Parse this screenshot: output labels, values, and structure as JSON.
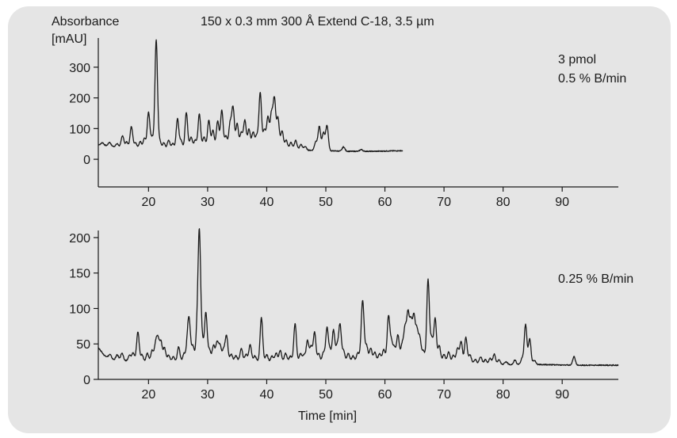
{
  "chart_data": [
    {
      "type": "line",
      "title": "150 x 0.3 mm 300 Å Extend C-18, 3.5 µm",
      "ylabel_line1": "Absorbance",
      "ylabel_line2": "[mAU]",
      "xlabel": "",
      "annotations": [
        "3 pmol",
        "0.5 % B/min"
      ],
      "xlim": [
        11.5,
        99.5
      ],
      "ylim": [
        -90,
        395
      ],
      "x_ticks": [
        20,
        30,
        40,
        50,
        60,
        70,
        80,
        90
      ],
      "y_ticks": [
        0,
        100,
        200,
        300
      ],
      "baseline": [
        [
          11.5,
          48
        ],
        [
          13,
          44
        ],
        [
          15,
          40
        ],
        [
          18,
          36
        ],
        [
          22,
          32
        ],
        [
          26,
          34
        ],
        [
          30,
          36
        ],
        [
          34,
          38
        ],
        [
          38,
          40
        ],
        [
          42,
          36
        ],
        [
          46,
          30
        ],
        [
          50,
          28
        ],
        [
          54,
          26
        ],
        [
          58,
          26
        ],
        [
          63,
          28
        ]
      ],
      "peaks": [
        [
          12.2,
          8
        ],
        [
          13.4,
          12
        ],
        [
          14.7,
          10
        ],
        [
          15.6,
          38
        ],
        [
          16.3,
          18
        ],
        [
          17.1,
          70
        ],
        [
          17.8,
          18
        ],
        [
          18.6,
          22
        ],
        [
          19.3,
          34
        ],
        [
          20.0,
          118
        ],
        [
          20.6,
          38
        ],
        [
          21.3,
          355
        ],
        [
          21.9,
          28
        ],
        [
          22.6,
          22
        ],
        [
          23.4,
          30
        ],
        [
          24.1,
          18
        ],
        [
          24.9,
          98
        ],
        [
          25.5,
          28
        ],
        [
          26.4,
          118
        ],
        [
          27.2,
          38
        ],
        [
          27.9,
          28
        ],
        [
          28.6,
          112
        ],
        [
          29.4,
          38
        ],
        [
          30.2,
          92
        ],
        [
          30.9,
          58
        ],
        [
          31.7,
          88
        ],
        [
          32.4,
          122
        ],
        [
          33.1,
          38
        ],
        [
          33.8,
          78
        ],
        [
          34.3,
          130
        ],
        [
          35.0,
          78
        ],
        [
          35.7,
          48
        ],
        [
          36.3,
          88
        ],
        [
          37.0,
          58
        ],
        [
          37.7,
          48
        ],
        [
          38.3,
          38
        ],
        [
          38.9,
          178
        ],
        [
          39.6,
          58
        ],
        [
          40.2,
          98
        ],
        [
          40.8,
          108
        ],
        [
          41.3,
          158
        ],
        [
          41.9,
          98
        ],
        [
          42.6,
          58
        ],
        [
          43.3,
          28
        ],
        [
          44.1,
          22
        ],
        [
          44.9,
          30
        ],
        [
          45.8,
          18
        ],
        [
          46.5,
          12
        ],
        [
          48.3,
          28
        ],
        [
          48.9,
          78
        ],
        [
          49.6,
          58
        ],
        [
          50.2,
          82
        ],
        [
          53.0,
          14
        ],
        [
          56.0,
          6
        ]
      ]
    },
    {
      "type": "line",
      "title": "",
      "xlabel": "Time [min]",
      "annotations": [
        "0.25 % B/min"
      ],
      "xlim": [
        11.5,
        99.5
      ],
      "ylim": [
        0,
        210
      ],
      "x_ticks": [
        20,
        30,
        40,
        50,
        60,
        70,
        80,
        90
      ],
      "y_ticks": [
        0,
        50,
        100,
        150,
        200
      ],
      "baseline": [
        [
          11.5,
          45
        ],
        [
          12.5,
          34
        ],
        [
          14,
          28
        ],
        [
          18,
          25
        ],
        [
          25,
          24
        ],
        [
          30,
          26
        ],
        [
          40,
          25
        ],
        [
          50,
          24
        ],
        [
          58,
          26
        ],
        [
          64,
          27
        ],
        [
          68,
          26
        ],
        [
          72,
          24
        ],
        [
          76,
          22
        ],
        [
          80,
          21
        ],
        [
          86,
          21
        ],
        [
          92,
          20
        ],
        [
          99.5,
          20
        ]
      ],
      "peaks": [
        [
          13.5,
          5
        ],
        [
          14.7,
          7
        ],
        [
          15.5,
          10
        ],
        [
          16.8,
          8
        ],
        [
          17.4,
          12
        ],
        [
          18.2,
          42
        ],
        [
          18.9,
          10
        ],
        [
          19.8,
          12
        ],
        [
          20.6,
          16
        ],
        [
          21.2,
          25
        ],
        [
          21.6,
          30
        ],
        [
          22.1,
          28
        ],
        [
          22.7,
          20
        ],
        [
          23.4,
          10
        ],
        [
          24.2,
          8
        ],
        [
          25.1,
          22
        ],
        [
          26.0,
          12
        ],
        [
          26.6,
          28
        ],
        [
          26.9,
          50
        ],
        [
          27.5,
          22
        ],
        [
          28.2,
          38
        ],
        [
          28.6,
          178
        ],
        [
          29.1,
          28
        ],
        [
          29.7,
          68
        ],
        [
          30.3,
          16
        ],
        [
          31.0,
          22
        ],
        [
          31.6,
          26
        ],
        [
          32.1,
          22
        ],
        [
          32.7,
          16
        ],
        [
          33.2,
          36
        ],
        [
          34.0,
          10
        ],
        [
          34.8,
          8
        ],
        [
          35.7,
          18
        ],
        [
          36.5,
          10
        ],
        [
          37.2,
          24
        ],
        [
          38.0,
          8
        ],
        [
          39.1,
          62
        ],
        [
          40.0,
          10
        ],
        [
          40.9,
          8
        ],
        [
          41.6,
          12
        ],
        [
          42.3,
          16
        ],
        [
          43.2,
          12
        ],
        [
          44.0,
          8
        ],
        [
          44.8,
          54
        ],
        [
          45.7,
          12
        ],
        [
          46.3,
          10
        ],
        [
          46.9,
          30
        ],
        [
          47.5,
          22
        ],
        [
          48.1,
          42
        ],
        [
          48.8,
          12
        ],
        [
          49.6,
          14
        ],
        [
          50.2,
          48
        ],
        [
          50.7,
          16
        ],
        [
          51.3,
          45
        ],
        [
          51.9,
          22
        ],
        [
          52.4,
          52
        ],
        [
          53.0,
          16
        ],
        [
          53.8,
          12
        ],
        [
          54.6,
          8
        ],
        [
          55.4,
          12
        ],
        [
          56.1,
          36
        ],
        [
          56.3,
          58
        ],
        [
          56.9,
          22
        ],
        [
          57.6,
          18
        ],
        [
          58.3,
          12
        ],
        [
          59.1,
          10
        ],
        [
          59.8,
          16
        ],
        [
          60.6,
          62
        ],
        [
          61.1,
          26
        ],
        [
          61.6,
          18
        ],
        [
          62.2,
          36
        ],
        [
          62.9,
          22
        ],
        [
          63.4,
          44
        ],
        [
          63.9,
          64
        ],
        [
          64.4,
          52
        ],
        [
          64.9,
          60
        ],
        [
          65.4,
          42
        ],
        [
          65.9,
          32
        ],
        [
          66.5,
          14
        ],
        [
          67.3,
          114
        ],
        [
          67.9,
          32
        ],
        [
          68.5,
          60
        ],
        [
          69.2,
          22
        ],
        [
          70.0,
          10
        ],
        [
          70.8,
          14
        ],
        [
          71.6,
          10
        ],
        [
          72.3,
          20
        ],
        [
          72.9,
          30
        ],
        [
          73.7,
          36
        ],
        [
          74.4,
          12
        ],
        [
          75.3,
          6
        ],
        [
          76.2,
          10
        ],
        [
          77.0,
          6
        ],
        [
          77.8,
          8
        ],
        [
          78.5,
          14
        ],
        [
          79.3,
          6
        ],
        [
          80.5,
          4
        ],
        [
          82.0,
          6
        ],
        [
          83.2,
          8
        ],
        [
          83.8,
          56
        ],
        [
          84.5,
          36
        ],
        [
          85.3,
          6
        ],
        [
          92.0,
          12
        ]
      ]
    }
  ]
}
